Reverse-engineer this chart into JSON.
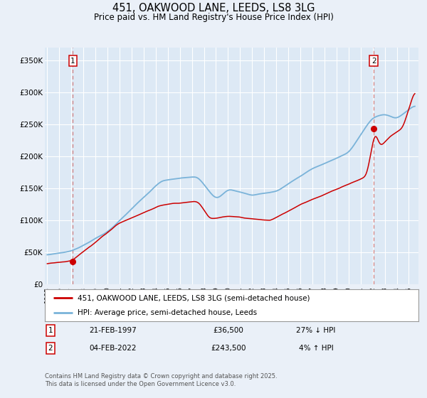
{
  "title_line1": "451, OAKWOOD LANE, LEEDS, LS8 3LG",
  "title_line2": "Price paid vs. HM Land Registry's House Price Index (HPI)",
  "title_fontsize": 10.5,
  "subtitle_fontsize": 8.5,
  "ylabel_ticks": [
    "£0",
    "£50K",
    "£100K",
    "£150K",
    "£200K",
    "£250K",
    "£300K",
    "£350K"
  ],
  "ytick_values": [
    0,
    50000,
    100000,
    150000,
    200000,
    250000,
    300000,
    350000
  ],
  "ylim": [
    0,
    370000
  ],
  "xlim_start": 1994.8,
  "xlim_end": 2025.8,
  "background_color": "#eaf0f8",
  "plot_bg_color": "#dde9f5",
  "grid_color": "#ffffff",
  "hpi_line_color": "#7ab3d9",
  "price_line_color": "#cc0000",
  "marker_color": "#cc0000",
  "dashed_line_color": "#d08080",
  "point1_x": 1997.13,
  "point1_y": 36500,
  "point1_label": "1",
  "point1_date": "21-FEB-1997",
  "point1_price": "£36,500",
  "point1_hpi": "27% ↓ HPI",
  "point2_x": 2022.09,
  "point2_y": 243500,
  "point2_label": "2",
  "point2_date": "04-FEB-2022",
  "point2_price": "£243,500",
  "point2_hpi": "4% ↑ HPI",
  "legend_label_price": "451, OAKWOOD LANE, LEEDS, LS8 3LG (semi-detached house)",
  "legend_label_hpi": "HPI: Average price, semi-detached house, Leeds",
  "footer_text": "Contains HM Land Registry data © Crown copyright and database right 2025.\nThis data is licensed under the Open Government Licence v3.0.",
  "footer_fontsize": 6.0
}
